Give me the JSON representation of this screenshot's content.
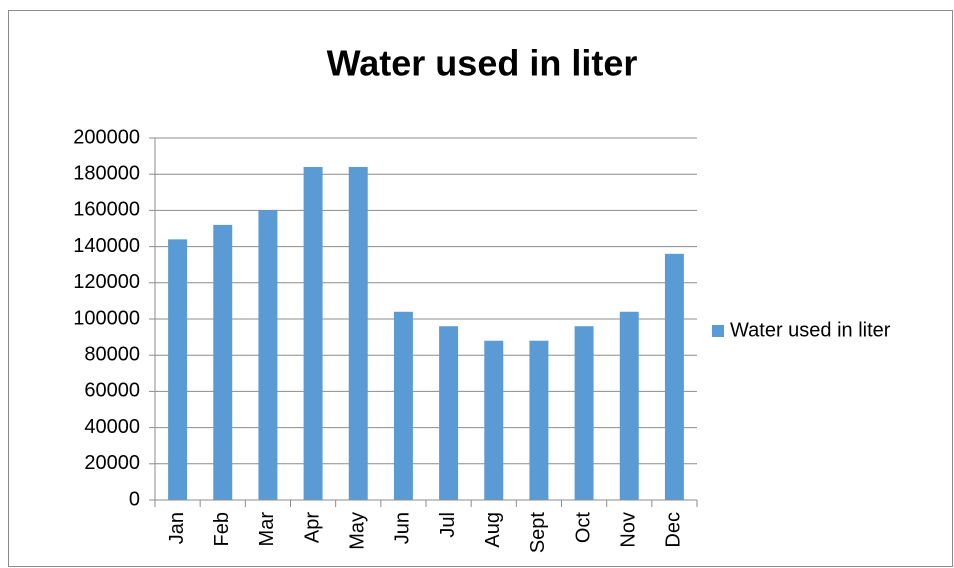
{
  "chart_data": {
    "type": "bar",
    "title": "Water used in liter",
    "categories": [
      "Jan",
      "Feb",
      "Mar",
      "Apr",
      "May",
      "Jun",
      "Jul",
      "Aug",
      "Sept",
      "Oct",
      "Nov",
      "Dec"
    ],
    "series": [
      {
        "name": "Water used in liter",
        "color": "#5b9bd5",
        "values": [
          144000,
          152000,
          160000,
          184000,
          184000,
          104000,
          96000,
          88000,
          88000,
          96000,
          104000,
          136000
        ]
      }
    ],
    "ylim": [
      0,
      200000
    ],
    "yticks": [
      0,
      20000,
      40000,
      60000,
      80000,
      100000,
      120000,
      140000,
      160000,
      180000,
      200000
    ],
    "grid": true,
    "legend": "right"
  }
}
